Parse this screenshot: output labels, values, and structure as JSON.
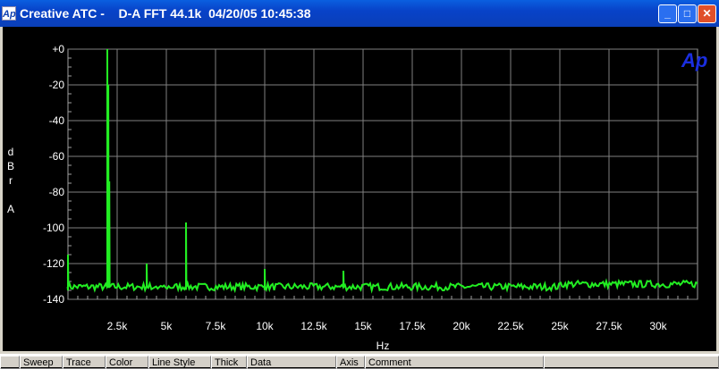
{
  "window": {
    "title": "Creative ATC -    D-A FFT 44.1k  04/20/05 10:45:38",
    "icon": "Ap",
    "minimize": "_",
    "maximize": "□",
    "close": "✕"
  },
  "plot": {
    "logo": "Ap",
    "logo_color": "#1a2ee0",
    "trace_color": "#22ee22",
    "ylabel": [
      "d",
      "B",
      "r",
      "",
      "A"
    ],
    "xlabel": "Hz"
  },
  "chart_data": {
    "type": "line",
    "xlabel": "Hz",
    "ylabel": "dBr A",
    "xlim": [
      0,
      32000
    ],
    "ylim": [
      -140,
      0
    ],
    "grid": true,
    "y_ticks": [
      "+0",
      "-20",
      "-40",
      "-60",
      "-80",
      "-100",
      "-120",
      "-140"
    ],
    "x_ticks": [
      "2.5k",
      "5k",
      "7.5k",
      "10k",
      "12.5k",
      "15k",
      "17.5k",
      "20k",
      "22.5k",
      "25k",
      "27.5k",
      "30k"
    ],
    "noise_floor_dB": -133,
    "peaks": [
      {
        "x": 0,
        "y": -115
      },
      {
        "x": 2000,
        "y": 0
      },
      {
        "x": 2050,
        "y": -20
      },
      {
        "x": 2100,
        "y": -74
      },
      {
        "x": 4000,
        "y": -120
      },
      {
        "x": 6000,
        "y": -97
      },
      {
        "x": 10000,
        "y": -123
      },
      {
        "x": 14000,
        "y": -124
      }
    ]
  },
  "table": {
    "headers": [
      "",
      "Sweep",
      "Trace",
      "Color",
      "Line Style",
      "Thick",
      "Data",
      "Axis",
      "Comment",
      ""
    ]
  }
}
